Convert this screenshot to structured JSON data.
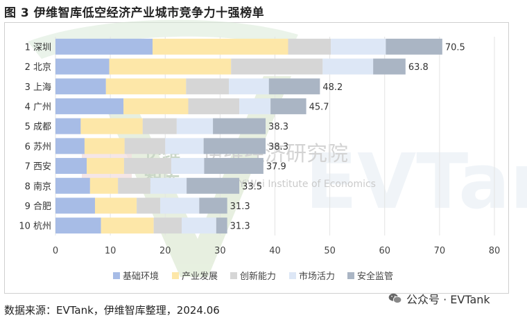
{
  "title": "图 3 伊维智库低空经济产业城市竞争力十强榜单",
  "source": "数据来源：EVTank，伊维智库整理，2024.06",
  "wechat_label": "公众号 · EVTank",
  "watermark": {
    "cn_short_1": "伊维",
    "cn_short_2": "智库",
    "cn_full": "伊维经济研究院",
    "en": "China YiWei Institute of Economics",
    "brand": "EVTank"
  },
  "chart_data": {
    "type": "bar",
    "orientation": "horizontal",
    "stacked": true,
    "title": "图 3 伊维智库低空经济产业城市竞争力十强榜单",
    "categories": [
      "1 深圳",
      "2 北京",
      "3 上海",
      "4 广州",
      "5 成都",
      "6 苏州",
      "7 西安",
      "8 南京",
      "9 合肥",
      "10 杭州"
    ],
    "totals": [
      70.5,
      63.8,
      48.2,
      45.7,
      38.3,
      38.3,
      37.9,
      33.5,
      31.3,
      31.3
    ],
    "series": [
      {
        "name": "基础环境",
        "color": "#a7bce6",
        "values": [
          17.7,
          9.8,
          9.2,
          12.4,
          4.6,
          5.3,
          5.7,
          6.3,
          7.2,
          8.3
        ]
      },
      {
        "name": "产业发展",
        "color": "#fde7a8",
        "values": [
          24.7,
          22.2,
          14.6,
          11.8,
          11.3,
          7.3,
          6.8,
          5.1,
          7.6,
          9.6
        ]
      },
      {
        "name": "创新能力",
        "color": "#d6d6d6",
        "values": [
          7.8,
          16.7,
          7.8,
          9.3,
          6.2,
          7.4,
          8.6,
          5.9,
          4.3,
          5.1
        ]
      },
      {
        "name": "市场活力",
        "color": "#dde7f6",
        "values": [
          10.0,
          9.2,
          7.3,
          5.7,
          6.6,
          7.0,
          6.0,
          6.6,
          7.1,
          6.3
        ]
      },
      {
        "name": "安全监管",
        "color": "#aab5c4",
        "values": [
          10.3,
          5.9,
          9.3,
          6.5,
          9.6,
          11.3,
          10.8,
          9.6,
          5.1,
          2.0
        ]
      }
    ],
    "xlim": [
      0,
      80
    ],
    "xticks": [
      0,
      10,
      20,
      30,
      40,
      50,
      60,
      70,
      80
    ],
    "xlabel": "",
    "ylabel": "",
    "legend_position": "bottom",
    "grid": "vertical"
  }
}
